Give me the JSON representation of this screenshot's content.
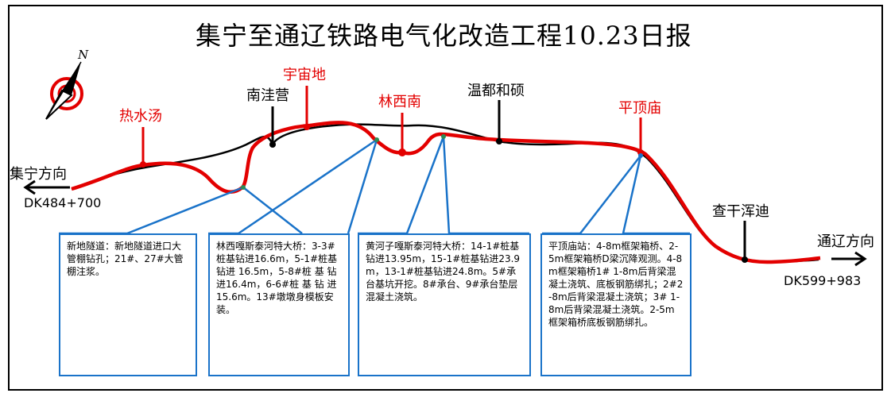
{
  "title": "集宁至通辽铁路电气化改造工程10.23日报",
  "compass": {
    "letter": "N"
  },
  "directions": {
    "left": "集宁方向",
    "right": "通辽方向",
    "left_stake": "DK484+700",
    "right_stake": "DK599+983"
  },
  "stations_red": [
    "热水汤",
    "宇宙地",
    "林西南",
    "平顶庙"
  ],
  "stations_black": [
    "南洼营",
    "温都和硕",
    "查干浑迪"
  ],
  "notes": [
    "新地隧道：新地隧道进口大管棚钻孔；21#、27#大管棚注浆。",
    "林西嘎斯泰河特大桥：3-3#桩基钻进16.6m，5-1#桩基钻进 16.5m，5-8#桩 基 钻 进16.4m，6-6#桩 基 钻 进15.6m。13#墩墩身模板安装。",
    "黄河子嘎斯泰河特大桥：14-1#桩基钻进13.95m，15-1#桩基钻进23.9m，13-1#桩基钻进24.8m。5#承台基坑开挖。8#承台、9#承台垫层混凝土浇筑。",
    "平顶庙站：4-8m框架箱桥、2-5m框架箱桥D梁沉降观测。4-8m框架箱桥1# 1-8m后背梁混凝土浇筑、底板钢筋绑扎；2#2-8m后背梁混凝土浇筑；3# 1-8m后背梁混凝土浇筑。2-5m框架箱桥底板钢筋绑扎。"
  ],
  "colors": {
    "red_line": "#e30000",
    "black_line": "#000000",
    "callout": "#1a73c9"
  }
}
